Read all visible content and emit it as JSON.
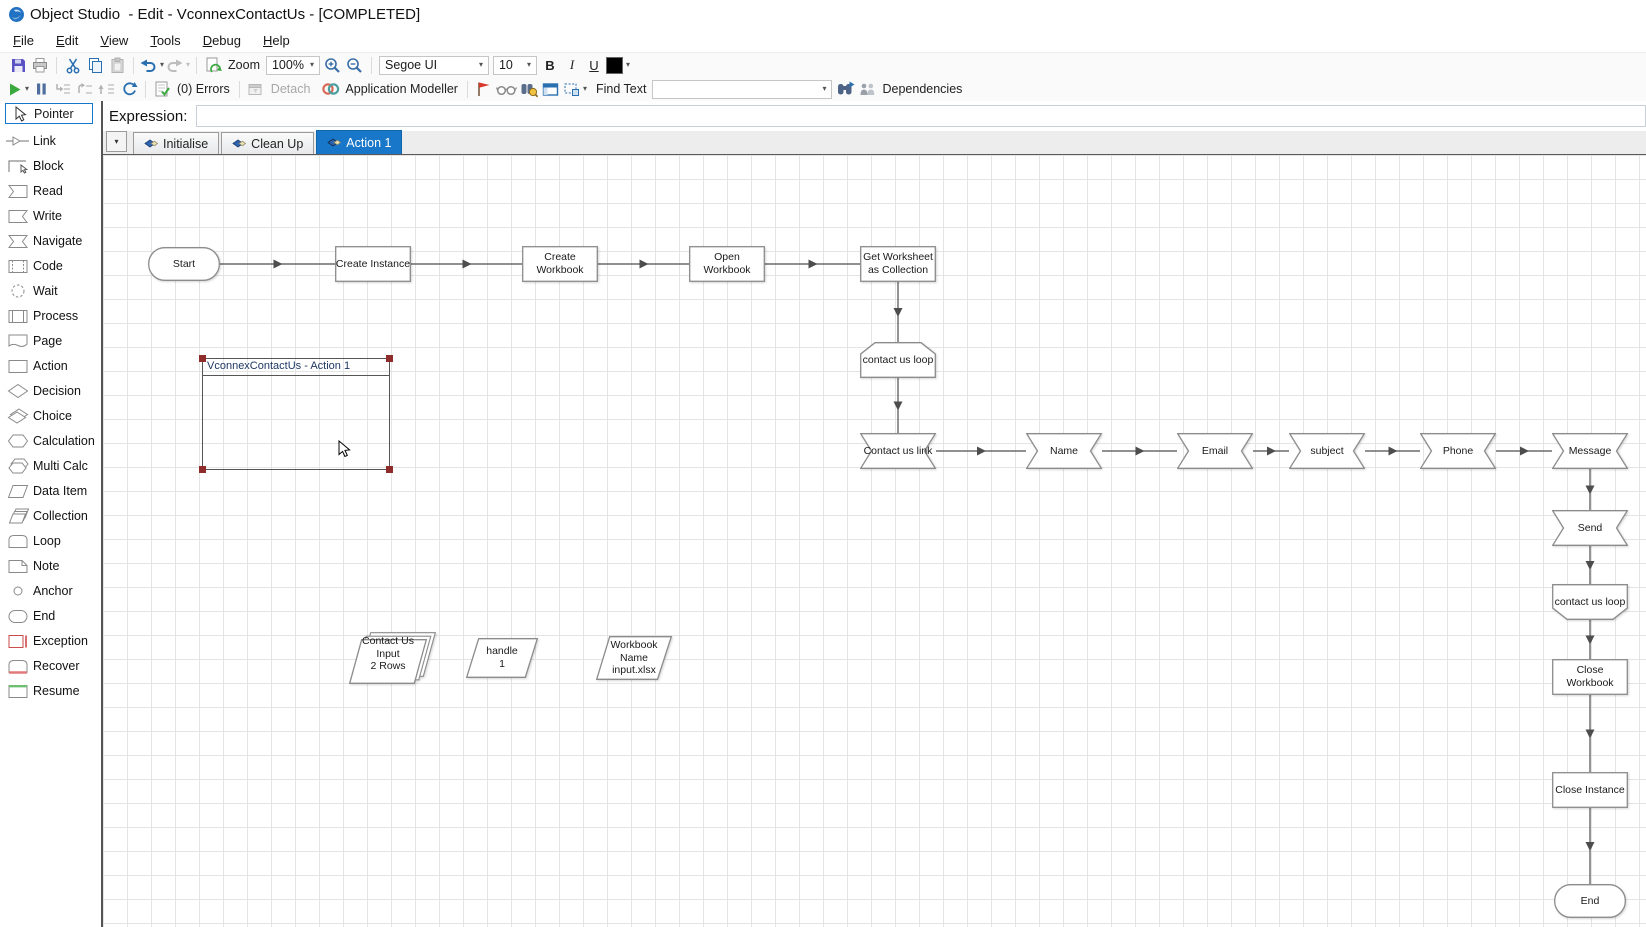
{
  "window": {
    "title": "Object Studio  - Edit - VconnexContactUs - [COMPLETED]"
  },
  "menu": {
    "items": [
      "File",
      "Edit",
      "View",
      "Tools",
      "Debug",
      "Help"
    ]
  },
  "toolbar": {
    "zoom_label": "Zoom",
    "zoom_value": "100%",
    "font_name": "Segoe UI",
    "font_size": "10",
    "bold": "B",
    "italic": "I",
    "underline": "U"
  },
  "debug_bar": {
    "errors": "(0) Errors",
    "detach": "Detach",
    "application_modeller": "Application Modeller",
    "find_text": "Find Text",
    "dependencies": "Dependencies"
  },
  "expression": {
    "label": "Expression:",
    "value": ""
  },
  "tabs": {
    "initialise": "Initialise",
    "clean_up": "Clean Up",
    "action_1": "Action 1"
  },
  "sidebar": {
    "items": [
      "Pointer",
      "Link",
      "Block",
      "Read",
      "Write",
      "Navigate",
      "Code",
      "Wait",
      "Process",
      "Page",
      "Action",
      "Decision",
      "Choice",
      "Calculation",
      "Multi Calc",
      "Data Item",
      "Collection",
      "Loop",
      "Note",
      "Anchor",
      "End",
      "Exception",
      "Recover",
      "Resume"
    ]
  },
  "diagram": {
    "block_title": "VconnexContactUs - Action 1",
    "nodes": {
      "start": "Start",
      "create_instance": "Create Instance",
      "create_workbook": "Create\nWorkbook",
      "open_workbook": "Open\nWorkbook",
      "get_worksheet": "Get Worksheet\nas Collection",
      "loop_start": "contact us loop",
      "contact_us_link": "Contact us link",
      "name": "Name",
      "email": "Email",
      "subject": "subject",
      "phone": "Phone",
      "message": "Message",
      "send": "Send",
      "loop_end": "contact us loop",
      "close_workbook": "Close\nWorkbook",
      "close_instance": "Close Instance",
      "end": "End",
      "collection_input": "Contact Us\nInput\n2 Rows",
      "handle": "handle\n1",
      "workbook_name": "Workbook\nName\ninput.xlsx"
    }
  },
  "colors": {
    "accent_blue": "#1877c8",
    "selection_red": "#8e2c2c",
    "play_green": "#3aa93f",
    "flag_red": "#d8372a",
    "save_purple": "#5a51c2"
  }
}
